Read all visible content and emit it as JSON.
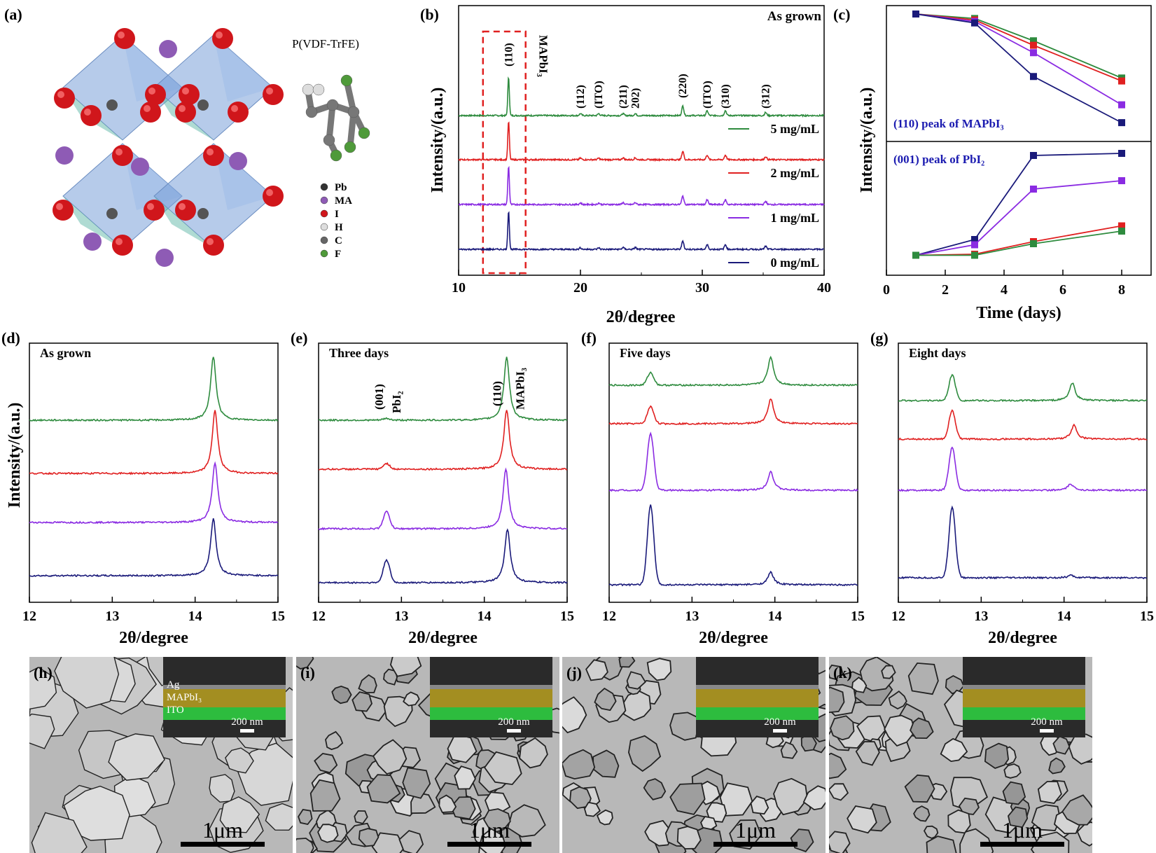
{
  "colors": {
    "c5": "#2e8b3e",
    "c2": "#e02020",
    "c1": "#8a2be2",
    "c0": "#1a1a7a",
    "grain": "#b8b8b8",
    "sem_bg": "#2a2a2a",
    "mapbi3": "#b8a020",
    "ito": "#2ecc40"
  },
  "panel_a": {
    "label": "(a)",
    "polymer_title": "P(VDF-TrFE)",
    "legend": [
      {
        "symbol": "Pb",
        "color": "#333333"
      },
      {
        "symbol": "MA",
        "color": "#8e5bb5"
      },
      {
        "symbol": "I",
        "color": "#d0161b"
      },
      {
        "symbol": "H",
        "color": "#dddddd"
      },
      {
        "symbol": "C",
        "color": "#666666"
      },
      {
        "symbol": "F",
        "color": "#4f9a3a"
      }
    ]
  },
  "panel_b": {
    "label": "(b)",
    "chart_data": {
      "type": "line",
      "title": "As grown",
      "xlabel": "2θ/degree",
      "ylabel": "Intensity/(a.u.)",
      "xlim": [
        10,
        40
      ],
      "xticks": [
        10,
        20,
        30,
        40
      ],
      "highlight_box": [
        12,
        15.5
      ],
      "box_label": "MAPbI₃",
      "peaks": [
        {
          "label": "(110)",
          "x": 14.1
        },
        {
          "label": "(112)",
          "x": 20.0
        },
        {
          "label": "(ITO)",
          "x": 21.5
        },
        {
          "label": "(211)",
          "x": 23.5
        },
        {
          "label": "202)",
          "x": 24.5
        },
        {
          "label": "(220)",
          "x": 28.4
        },
        {
          "label": "(ITO)",
          "x": 30.4
        },
        {
          "label": "(310)",
          "x": 31.9
        },
        {
          "label": "(312)",
          "x": 35.2
        }
      ],
      "series": [
        {
          "name": "5 mg/mL",
          "color_key": "c5"
        },
        {
          "name": "2 mg/mL",
          "color_key": "c2"
        },
        {
          "name": "1 mg/mL",
          "color_key": "c1"
        },
        {
          "name": "0 mg/mL",
          "color_key": "c0"
        }
      ]
    }
  },
  "panel_c": {
    "label": "(c)",
    "chart_data": {
      "type": "line",
      "xlabel": "Time  (days)",
      "ylabel": "Intensity/(a.u.)",
      "xlim": [
        0,
        9
      ],
      "xticks": [
        0,
        2,
        4,
        6,
        8
      ],
      "x": [
        1,
        3,
        5,
        8
      ],
      "top_label": "(110) peak of MAPbI₃",
      "bottom_label": "(001) peak  of PbI₂",
      "top_series": [
        {
          "name": "5 mg/mL",
          "color_key": "c5",
          "values": [
            1.0,
            0.97,
            0.82,
            0.57
          ]
        },
        {
          "name": "2 mg/mL",
          "color_key": "c2",
          "values": [
            1.0,
            0.96,
            0.79,
            0.55
          ]
        },
        {
          "name": "1 mg/mL",
          "color_key": "c1",
          "values": [
            1.0,
            0.95,
            0.74,
            0.39
          ]
        },
        {
          "name": "0 mg/mL",
          "color_key": "c0",
          "values": [
            1.0,
            0.94,
            0.58,
            0.27
          ]
        }
      ],
      "bottom_series": [
        {
          "name": "0 mg/mL",
          "color_key": "c0",
          "values": [
            0.05,
            0.2,
            1.0,
            1.02
          ]
        },
        {
          "name": "1 mg/mL",
          "color_key": "c1",
          "values": [
            0.05,
            0.15,
            0.68,
            0.76
          ]
        },
        {
          "name": "2 mg/mL",
          "color_key": "c2",
          "values": [
            0.05,
            0.06,
            0.18,
            0.33
          ]
        },
        {
          "name": "5 mg/mL",
          "color_key": "c5",
          "values": [
            0.05,
            0.05,
            0.16,
            0.28
          ]
        }
      ]
    }
  },
  "xrd_zoom": {
    "xlabel": "2θ/degree",
    "ylabel": "Intensity/(a.u.)",
    "xlim": [
      12,
      15
    ],
    "xticks": [
      12,
      13,
      14,
      15
    ],
    "panels": [
      {
        "label": "(d)",
        "title": "As grown",
        "annotations": [],
        "series": [
          {
            "color_key": "c5",
            "pbi2": 0.0,
            "mapbi3": 1.0,
            "mapbi3_pos": 14.22
          },
          {
            "color_key": "c2",
            "pbi2": 0.0,
            "mapbi3": 1.0,
            "mapbi3_pos": 14.24
          },
          {
            "color_key": "c1",
            "pbi2": 0.0,
            "mapbi3": 0.95,
            "mapbi3_pos": 14.24
          },
          {
            "color_key": "c0",
            "pbi2": 0.0,
            "mapbi3": 0.9,
            "mapbi3_pos": 14.22
          }
        ]
      },
      {
        "label": "(e)",
        "title": "Three days",
        "annotations": [
          "(001)",
          "PbI₂",
          "(110)",
          "MAPbI₃"
        ],
        "series": [
          {
            "color_key": "c5",
            "pbi2": 0.03,
            "mapbi3": 1.0,
            "mapbi3_pos": 14.27
          },
          {
            "color_key": "c2",
            "pbi2": 0.1,
            "mapbi3": 0.95,
            "mapbi3_pos": 14.27
          },
          {
            "color_key": "c1",
            "pbi2": 0.3,
            "mapbi3": 0.95,
            "mapbi3_pos": 14.26
          },
          {
            "color_key": "c0",
            "pbi2": 0.4,
            "mapbi3": 0.85,
            "mapbi3_pos": 14.28
          }
        ]
      },
      {
        "label": "(f)",
        "title": "Five days",
        "annotations": [],
        "series": [
          {
            "color_key": "c5",
            "pbi2": 0.22,
            "mapbi3": 0.45,
            "mapbi3_pos": 13.95
          },
          {
            "color_key": "c2",
            "pbi2": 0.3,
            "mapbi3": 0.4,
            "mapbi3_pos": 13.95
          },
          {
            "color_key": "c1",
            "pbi2": 1.0,
            "mapbi3": 0.3,
            "mapbi3_pos": 13.95
          },
          {
            "color_key": "c0",
            "pbi2": 1.4,
            "mapbi3": 0.2,
            "mapbi3_pos": 13.95
          }
        ]
      },
      {
        "label": "(g)",
        "title": "Eight days",
        "annotations": [],
        "series": [
          {
            "color_key": "c5",
            "pbi2": 0.45,
            "mapbi3": 0.28,
            "mapbi3_pos": 14.1
          },
          {
            "color_key": "c2",
            "pbi2": 0.5,
            "mapbi3": 0.22,
            "mapbi3_pos": 14.12
          },
          {
            "color_key": "c1",
            "pbi2": 0.75,
            "mapbi3": 0.1,
            "mapbi3_pos": 14.08
          },
          {
            "color_key": "c0",
            "pbi2": 1.25,
            "mapbi3": 0.04,
            "mapbi3_pos": 14.08
          }
        ]
      }
    ]
  },
  "sem": {
    "scalebar": "1μm",
    "inset_scalebar": "200 nm",
    "layer_labels": [
      "Ag",
      "MAPbI₃",
      "ITO"
    ],
    "panels": [
      {
        "label": "(h)"
      },
      {
        "label": "(i)"
      },
      {
        "label": "(j)"
      },
      {
        "label": "(k)"
      }
    ]
  }
}
